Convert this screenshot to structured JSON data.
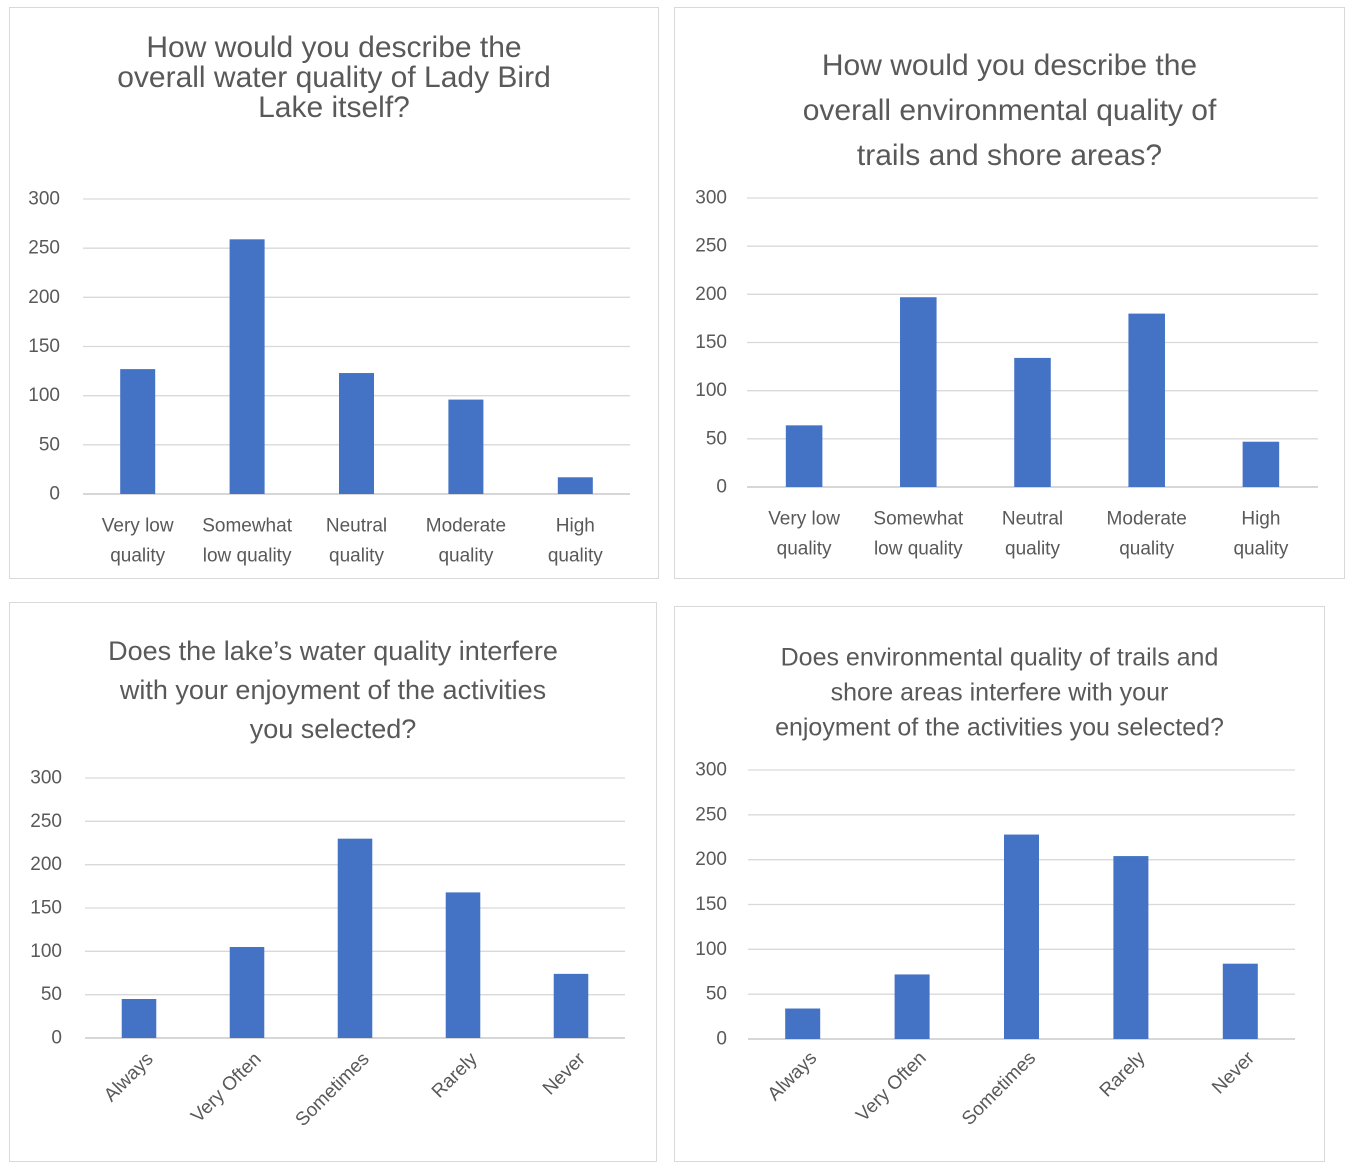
{
  "chart_data": [
    {
      "type": "bar",
      "title": "How would you describe the overall water quality of Lady Bird Lake itself?",
      "title_lines": [
        "How would you describe the",
        "overall water quality of Lady Bird",
        "Lake itself?"
      ],
      "categories": [
        "Very low quality",
        "Somewhat low quality",
        "Neutral quality",
        "Moderate quality",
        "High quality"
      ],
      "category_lines": [
        [
          "Very low",
          "quality"
        ],
        [
          "Somewhat",
          "low quality"
        ],
        [
          "Neutral",
          "quality"
        ],
        [
          "Moderate",
          "quality"
        ],
        [
          "High",
          "quality"
        ]
      ],
      "values": [
        127,
        259,
        123,
        96,
        17
      ],
      "ylim": [
        0,
        300
      ],
      "yticks": [
        "0",
        "50",
        "100",
        "150",
        "200",
        "250",
        "300"
      ],
      "grid": true,
      "bar_color": "#4472c4"
    },
    {
      "type": "bar",
      "title": "How would you describe the overall environmental quality of trails and shore areas?",
      "title_lines": [
        "How would you describe the",
        "overall environmental quality of",
        "trails and shore areas?"
      ],
      "categories": [
        "Very low quality",
        "Somewhat low quality",
        "Neutral quality",
        "Moderate quality",
        "High quality"
      ],
      "category_lines": [
        [
          "Very low",
          "quality"
        ],
        [
          "Somewhat",
          "low quality"
        ],
        [
          "Neutral",
          "quality"
        ],
        [
          "Moderate",
          "quality"
        ],
        [
          "High",
          "quality"
        ]
      ],
      "values": [
        64,
        197,
        134,
        180,
        47
      ],
      "ylim": [
        0,
        300
      ],
      "yticks": [
        "0",
        "50",
        "100",
        "150",
        "200",
        "250",
        "300"
      ],
      "grid": true,
      "bar_color": "#4472c4"
    },
    {
      "type": "bar",
      "title": "Does the lake’s water quality interfere with your enjoyment of the activities you selected?",
      "title_lines": [
        "Does the lake’s water quality interfere",
        "with your enjoyment of the activities",
        "you selected?"
      ],
      "categories": [
        "Always",
        "Very Often",
        "Sometimes",
        "Rarely",
        "Never"
      ],
      "values": [
        45,
        105,
        230,
        168,
        74
      ],
      "ylim": [
        0,
        300
      ],
      "yticks": [
        "0",
        "50",
        "100",
        "150",
        "200",
        "250",
        "300"
      ],
      "grid": true,
      "bar_color": "#4472c4"
    },
    {
      "type": "bar",
      "title": "Does environmental quality of trails and shore areas interfere with your enjoyment of the activities you selected?",
      "title_lines": [
        "Does environmental quality of trails and",
        "shore areas interfere with your",
        "enjoyment of the activities you selected?"
      ],
      "categories": [
        "Always",
        "Very Often",
        "Sometimes",
        "Rarely",
        "Never"
      ],
      "values": [
        34,
        72,
        228,
        204,
        84
      ],
      "ylim": [
        0,
        300
      ],
      "yticks": [
        "0",
        "50",
        "100",
        "150",
        "200",
        "250",
        "300"
      ],
      "grid": true,
      "bar_color": "#4472c4"
    }
  ]
}
